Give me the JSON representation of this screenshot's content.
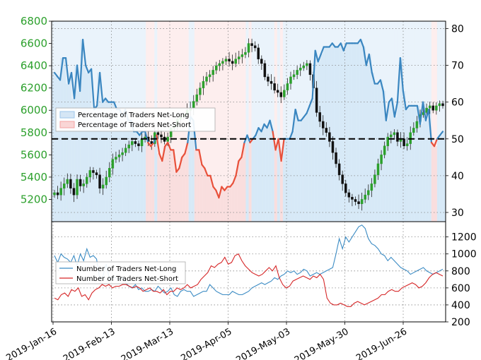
{
  "chart_data": [
    {
      "type": "line",
      "title": "",
      "left_axis": {
        "ticks": [
          "5200",
          "5400",
          "5600",
          "5800",
          "6000",
          "6200",
          "6400",
          "6600",
          "6800"
        ],
        "range": [
          5000,
          6800
        ],
        "color": "#2ca02c"
      },
      "right_axis": {
        "ticks": [
          "30",
          "40",
          "50",
          "60",
          "70",
          "80"
        ],
        "range": [
          27.5,
          82
        ]
      },
      "threshold": 50,
      "legend": {
        "placement": "upper-left",
        "entries": [
          {
            "label": "Percentage of Traders Net-Long",
            "color": "#9ec7ea"
          },
          {
            "label": "Percentage of Traders Net-Short",
            "color": "#f4a3a3"
          }
        ]
      },
      "series": [
        {
          "name": "Percentage of Traders Net-Long",
          "axis": "right",
          "values": [
            68,
            67,
            66,
            72,
            72,
            65,
            68,
            61,
            70,
            63,
            77,
            70,
            68,
            69,
            58,
            59,
            68,
            60,
            61,
            60,
            60,
            60,
            58,
            58,
            56,
            58,
            55,
            55,
            52,
            52,
            51,
            52,
            52,
            49,
            48,
            49,
            51,
            46,
            44,
            48,
            49,
            47,
            47,
            41,
            42,
            45,
            46,
            49,
            56,
            55,
            47,
            47,
            43,
            42,
            40,
            40,
            37,
            36,
            34,
            37,
            36,
            37,
            37,
            38,
            40,
            44,
            45,
            49,
            51,
            49,
            50,
            51,
            53,
            52,
            54,
            53,
            55,
            52,
            47,
            50,
            44,
            50,
            50,
            50,
            52,
            58,
            55,
            55,
            56,
            57,
            59,
            61,
            74,
            71,
            73,
            75,
            75,
            75,
            76,
            75,
            75,
            76,
            74,
            76,
            76,
            76,
            76,
            76,
            77,
            75,
            70,
            73,
            68,
            65,
            65,
            66,
            63,
            55,
            60,
            61,
            56,
            60,
            72,
            63,
            58,
            59,
            59,
            59,
            59,
            54,
            60,
            55,
            58,
            49,
            48,
            50,
            51,
            52
          ]
        },
        {
          "name": "Price",
          "axis": "left",
          "type": "candlestick",
          "values": [
            5260,
            5240,
            5300,
            5340,
            5380,
            5300,
            5240,
            5380,
            5320,
            5340,
            5400,
            5460,
            5440,
            5420,
            5300,
            5330,
            5400,
            5480,
            5560,
            5580,
            5600,
            5620,
            5660,
            5690,
            5720,
            5700,
            5680,
            5740,
            5760,
            5720,
            5700,
            5800,
            5780,
            5760,
            5720,
            5760,
            5840,
            5860,
            5920,
            5940,
            5960,
            6000,
            6020,
            6080,
            6140,
            6200,
            6260,
            6300,
            6320,
            6360,
            6400,
            6420,
            6440,
            6460,
            6440,
            6420,
            6460,
            6480,
            6500,
            6520,
            6600,
            6580,
            6560,
            6460,
            6420,
            6300,
            6260,
            6240,
            6180,
            6160,
            6120,
            6180,
            6240,
            6300,
            6320,
            6360,
            6380,
            6400,
            6420,
            6320,
            6200,
            5980,
            5900,
            5840,
            5800,
            5720,
            5620,
            5520,
            5420,
            5340,
            5260,
            5220,
            5200,
            5180,
            5160,
            5200,
            5240,
            5280,
            5340,
            5420,
            5520,
            5600,
            5680,
            5760,
            5780,
            5800,
            5720,
            5740,
            5680,
            5700,
            5800,
            5840,
            5900,
            5960,
            5980,
            6020,
            6040,
            6000,
            6040,
            6060,
            6040
          ]
        },
        {
          "name": "Number of Traders Net-Long",
          "axis": "lower",
          "values": [
            980,
            900,
            1000,
            960,
            940,
            900,
            980,
            860,
            1000,
            920,
            1060,
            960,
            980,
            940,
            700,
            740,
            880,
            700,
            720,
            720,
            700,
            720,
            660,
            620,
            600,
            640,
            580,
            600,
            560,
            560,
            580,
            560,
            620,
            580,
            540,
            560,
            600,
            520,
            500,
            560,
            580,
            560,
            560,
            500,
            520,
            540,
            560,
            560,
            640,
            600,
            560,
            540,
            520,
            520,
            520,
            560,
            540,
            520,
            520,
            540,
            560,
            600,
            620,
            640,
            660,
            640,
            660,
            680,
            720,
            700,
            740,
            760,
            800,
            780,
            800,
            760,
            780,
            820,
            800,
            740,
            760,
            780,
            760,
            780,
            800,
            820,
            840,
            1000,
            1180,
            1060,
            1200,
            1140,
            1200,
            1260,
            1320,
            1340,
            1300,
            1180,
            1120,
            1100,
            1060,
            1000,
            980,
            920,
            960,
            920,
            880,
            840,
            820,
            800,
            760,
            780,
            800,
            820,
            840,
            800,
            780,
            760,
            780,
            800,
            820
          ]
        },
        {
          "name": "Number of Traders Net-Short",
          "axis": "lower",
          "values": [
            480,
            460,
            520,
            540,
            500,
            580,
            560,
            600,
            500,
            520,
            460,
            540,
            580,
            600,
            640,
            620,
            640,
            600,
            620,
            620,
            640,
            640,
            620,
            600,
            620,
            600,
            560,
            580,
            600,
            560,
            560,
            540,
            580,
            520,
            560,
            560,
            600,
            580,
            600,
            640,
            600,
            620,
            640,
            700,
            740,
            780,
            860,
            840,
            880,
            900,
            960,
            880,
            900,
            980,
            1000,
            920,
            860,
            820,
            780,
            760,
            740,
            760,
            800,
            840,
            800,
            860,
            720,
            640,
            600,
            620,
            680,
            700,
            720,
            740,
            720,
            700,
            740,
            720,
            760,
            700,
            480,
            420,
            400,
            400,
            420,
            400,
            380,
            380,
            420,
            440,
            420,
            400,
            420,
            440,
            460,
            480,
            520,
            520,
            560,
            580,
            560,
            560,
            600,
            620,
            640,
            660,
            640,
            600,
            620,
            660,
            720,
            760,
            780,
            760,
            740
          ]
        }
      ]
    },
    {
      "type": "line",
      "axis": {
        "ticks": [
          "200",
          "400",
          "600",
          "800",
          "1000",
          "1200"
        ],
        "range": [
          200,
          1380
        ]
      },
      "legend": {
        "placement": "upper-left",
        "entries": [
          {
            "label": "Number of Traders Net-Long",
            "color": "#3c8cc4"
          },
          {
            "label": "Number of Traders Net-Short",
            "color": "#d62728"
          }
        ]
      },
      "x_ticks": [
        "2019-Jan-16",
        "2019-Feb-13",
        "2019-Mar-13",
        "2019-Apr-05",
        "2019-May-03",
        "2019-May-30",
        "2019-Jun-26"
      ]
    }
  ]
}
